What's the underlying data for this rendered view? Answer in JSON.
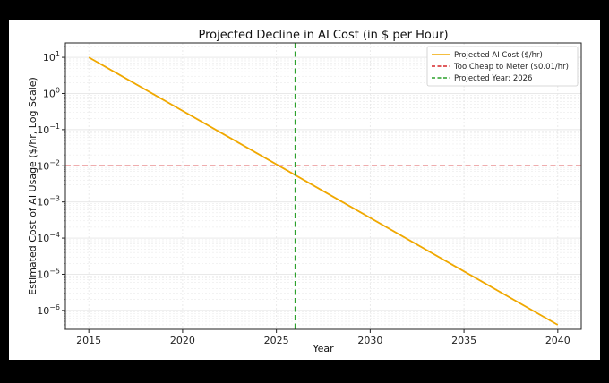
{
  "chart_data": {
    "type": "line",
    "title": "Projected Decline in AI Cost (in $ per Hour)",
    "xlabel": "Year",
    "ylabel": "Estimated Cost of AI Usage ($/hr, Log Scale)",
    "y_scale": "log",
    "xlim": [
      2013.75,
      2041.25
    ],
    "ylim": [
      3e-07,
      25
    ],
    "x_ticks": [
      2015,
      2020,
      2025,
      2030,
      2035,
      2040
    ],
    "x_tick_labels": [
      "2015",
      "2020",
      "2025",
      "2030",
      "2035",
      "2040"
    ],
    "y_ticks": [
      {
        "value": 10,
        "base": "10",
        "exp": "1"
      },
      {
        "value": 1,
        "base": "10",
        "exp": "0"
      },
      {
        "value": 0.1,
        "base": "10",
        "exp": "−1"
      },
      {
        "value": 0.01,
        "base": "10",
        "exp": "−2"
      },
      {
        "value": 0.001,
        "base": "10",
        "exp": "−3"
      },
      {
        "value": 0.0001,
        "base": "10",
        "exp": "−4"
      },
      {
        "value": 1e-05,
        "base": "10",
        "exp": "−5"
      },
      {
        "value": 1e-06,
        "base": "10",
        "exp": "−6"
      }
    ],
    "grid": true,
    "legend_position": "top-right",
    "series": [
      {
        "name": "Projected AI Cost ($/hr)",
        "kind": "line",
        "color": "#f0a800",
        "dash": "solid",
        "x": [
          2015,
          2040
        ],
        "y": [
          10,
          4e-07
        ]
      },
      {
        "name": "Too Cheap to Meter ($0.01/hr)",
        "kind": "hline",
        "color": "#d62728",
        "dash": "dashed",
        "y": 0.01
      },
      {
        "name": "Projected Year: 2026",
        "kind": "vline",
        "color": "#2ca02c",
        "dash": "dashed",
        "x": 2026
      }
    ]
  }
}
